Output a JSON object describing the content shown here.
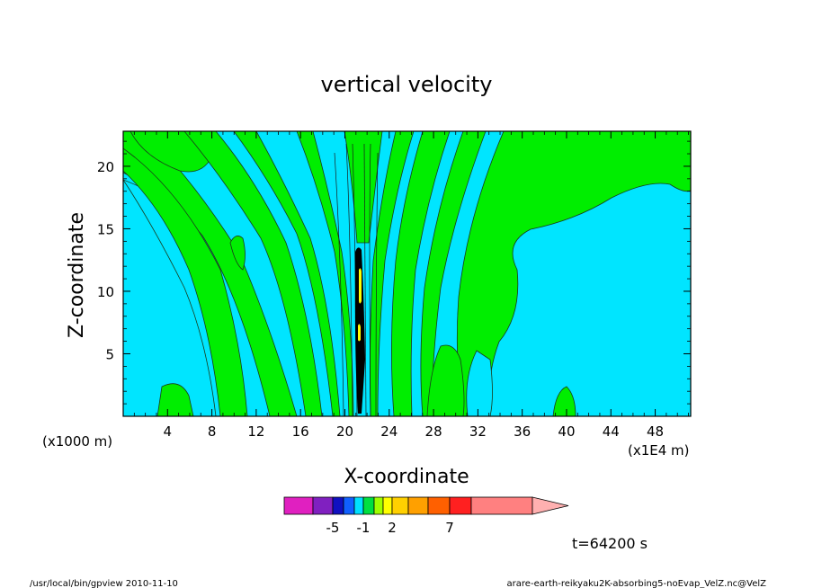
{
  "chart_data": {
    "type": "heatmap",
    "title": "vertical velocity",
    "xlabel": "X-coordinate",
    "ylabel": "Z-coordinate",
    "x_unit_left": "(x1000 m)",
    "x_unit_right": "(x1E4 m)",
    "x_ticks": [
      "4",
      "8",
      "12",
      "16",
      "20",
      "24",
      "28",
      "32",
      "36",
      "40",
      "44",
      "48"
    ],
    "y_ticks": [
      "5",
      "10",
      "15",
      "20"
    ],
    "xlim": [
      0,
      51.2
    ],
    "ylim": [
      0,
      22.8
    ],
    "colorbar": {
      "labels": [
        "-5",
        "-1",
        "2",
        "7"
      ],
      "label_positions": [
        -5,
        -1,
        2,
        7
      ],
      "colors": [
        "#e020c0",
        "#8020c0",
        "#1010c0",
        "#1060ff",
        "#00e0ff",
        "#00e040",
        "#a0ff00",
        "#ffff00",
        "#ffd000",
        "#ffa000",
        "#ff6000",
        "#ff2020",
        "#ff8080",
        "#ffb0b0"
      ]
    },
    "field_colors": {
      "background": "#00e5ff",
      "positive": "#00ee00",
      "core": "#000000",
      "peak": "#ffff00"
    },
    "time_label": "t=64200 s"
  },
  "footer": {
    "left": "/usr/local/bin/gpview  2010-11-10",
    "right": "arare-earth-reikyaku2K-absorbing5-noEvap_VelZ.nc@VelZ"
  }
}
